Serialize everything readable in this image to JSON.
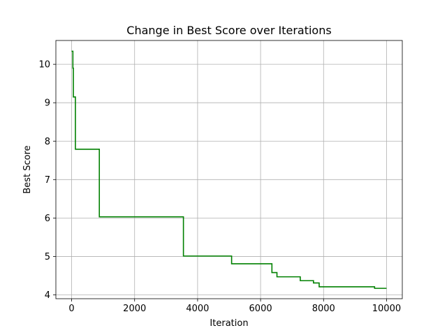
{
  "chart_data": {
    "type": "line",
    "title": "Change in Best Score over Iterations",
    "xlabel": "Iteration",
    "ylabel": "Best Score",
    "xlim": [
      -500,
      10500
    ],
    "ylim": [
      3.9,
      10.62
    ],
    "xticks": [
      0,
      2000,
      4000,
      6000,
      8000,
      10000
    ],
    "xtick_labels": [
      "0",
      "2000",
      "4000",
      "6000",
      "8000",
      "10000"
    ],
    "yticks": [
      4,
      5,
      6,
      7,
      8,
      9,
      10
    ],
    "ytick_labels": [
      "4",
      "5",
      "6",
      "7",
      "8",
      "9",
      "10"
    ],
    "grid": true,
    "step": true,
    "series": [
      {
        "color": "#008000",
        "x": [
          0,
          40,
          40,
          55,
          55,
          120,
          120,
          880,
          880,
          3550,
          3550,
          5080,
          5080,
          6360,
          6360,
          6520,
          6520,
          7260,
          7260,
          7680,
          7680,
          7860,
          7860,
          9620,
          9620,
          10000
        ],
        "y": [
          10.34,
          10.34,
          9.9,
          9.9,
          9.15,
          9.15,
          7.79,
          7.79,
          6.03,
          6.03,
          5.01,
          5.01,
          4.81,
          4.81,
          4.58,
          4.58,
          4.47,
          4.47,
          4.37,
          4.37,
          4.31,
          4.31,
          4.21,
          4.21,
          4.17,
          4.17
        ]
      }
    ]
  }
}
